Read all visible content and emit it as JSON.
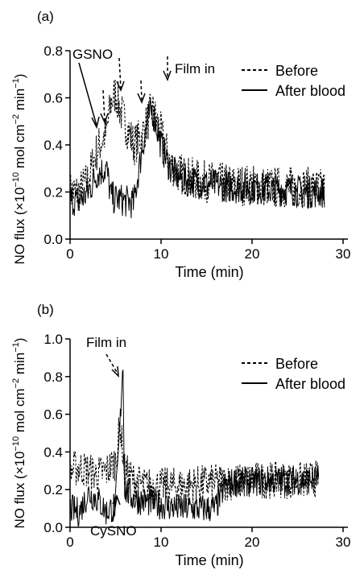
{
  "chart_data": [
    {
      "panel_label": "(a)",
      "type": "line",
      "xlabel": "Time (min)",
      "ylabel_main": "NO flux (×10",
      "ylabel_exp1": "−10",
      "ylabel_mid": " mol cm",
      "ylabel_exp2": "−2",
      "ylabel_mid2": " min",
      "ylabel_exp3": "−1",
      "ylabel_end": ")",
      "xlim": [
        0,
        30
      ],
      "ylim": [
        0.0,
        0.8
      ],
      "xticks": [
        "0",
        "10",
        "20",
        "30"
      ],
      "yticks": [
        "0.0",
        "0.2",
        "0.4",
        "0.6",
        "0.8"
      ],
      "legend": [
        "Before",
        "After blood"
      ],
      "annotations": [
        "GSNO",
        "Film in"
      ],
      "series": [
        {
          "name": "Before",
          "style": "dashed",
          "x": [
            0,
            1,
            2,
            2.5,
            3,
            3.5,
            4,
            4.5,
            5,
            5.5,
            6,
            6.5,
            7,
            7.5,
            8,
            8.5,
            9,
            9.5,
            10,
            11,
            12,
            14,
            16,
            18,
            20,
            22,
            24,
            26,
            28
          ],
          "y": [
            0.2,
            0.2,
            0.25,
            0.32,
            0.38,
            0.42,
            0.45,
            0.58,
            0.62,
            0.55,
            0.5,
            0.45,
            0.4,
            0.42,
            0.45,
            0.5,
            0.55,
            0.5,
            0.45,
            0.32,
            0.28,
            0.25,
            0.24,
            0.23,
            0.23,
            0.22,
            0.22,
            0.22,
            0.21
          ]
        },
        {
          "name": "After blood",
          "style": "solid",
          "x": [
            0,
            1,
            2,
            3,
            4,
            4.5,
            5,
            5.5,
            6,
            6.5,
            7,
            7.5,
            8,
            8.5,
            9,
            9.5,
            10,
            11,
            12,
            14,
            16,
            18,
            20,
            22,
            24,
            26,
            28
          ],
          "y": [
            0.17,
            0.16,
            0.2,
            0.28,
            0.3,
            0.18,
            0.17,
            0.17,
            0.16,
            0.16,
            0.15,
            0.28,
            0.4,
            0.5,
            0.55,
            0.48,
            0.4,
            0.3,
            0.26,
            0.24,
            0.23,
            0.22,
            0.22,
            0.21,
            0.21,
            0.2,
            0.2
          ]
        }
      ],
      "noise": [
        0.09,
        0.07
      ]
    },
    {
      "panel_label": "(b)",
      "type": "line",
      "xlabel": "Time (min)",
      "ylabel_main": "NO flux (×10",
      "ylabel_exp1": "−10",
      "ylabel_mid": " mol cm",
      "ylabel_exp2": "−2",
      "ylabel_mid2": " min",
      "ylabel_exp3": "−1",
      "ylabel_end": ")",
      "xlim": [
        0,
        30
      ],
      "ylim": [
        0.0,
        1.0
      ],
      "xticks": [
        "0",
        "10",
        "20",
        "30"
      ],
      "yticks": [
        "0.0",
        "0.2",
        "0.4",
        "0.6",
        "0.8",
        "1.0"
      ],
      "legend": [
        "Before",
        "After blood"
      ],
      "annotations": [
        "Film in",
        "CySNO"
      ],
      "series": [
        {
          "name": "Before",
          "style": "dashed",
          "x": [
            0,
            1,
            2,
            3,
            4,
            5,
            5.5,
            6,
            7,
            8,
            10,
            12,
            14,
            16,
            18,
            20,
            22,
            24,
            26,
            27.3
          ],
          "y": [
            0.3,
            0.32,
            0.3,
            0.28,
            0.3,
            0.35,
            0.55,
            0.3,
            0.25,
            0.22,
            0.22,
            0.22,
            0.23,
            0.24,
            0.24,
            0.25,
            0.25,
            0.25,
            0.25,
            0.26
          ]
        },
        {
          "name": "After blood",
          "style": "solid",
          "x": [
            0,
            1,
            2,
            3,
            4,
            5,
            5.5,
            5.8,
            6,
            7,
            8,
            10,
            12,
            14,
            16,
            17,
            18,
            20,
            22,
            24,
            26,
            27.3
          ],
          "y": [
            0.1,
            0.08,
            0.18,
            0.15,
            0.08,
            0.12,
            0.55,
            0.9,
            0.2,
            0.15,
            0.14,
            0.12,
            0.1,
            0.1,
            0.1,
            0.22,
            0.24,
            0.24,
            0.25,
            0.25,
            0.25,
            0.26
          ]
        }
      ],
      "noise": [
        0.1,
        0.08
      ]
    }
  ]
}
